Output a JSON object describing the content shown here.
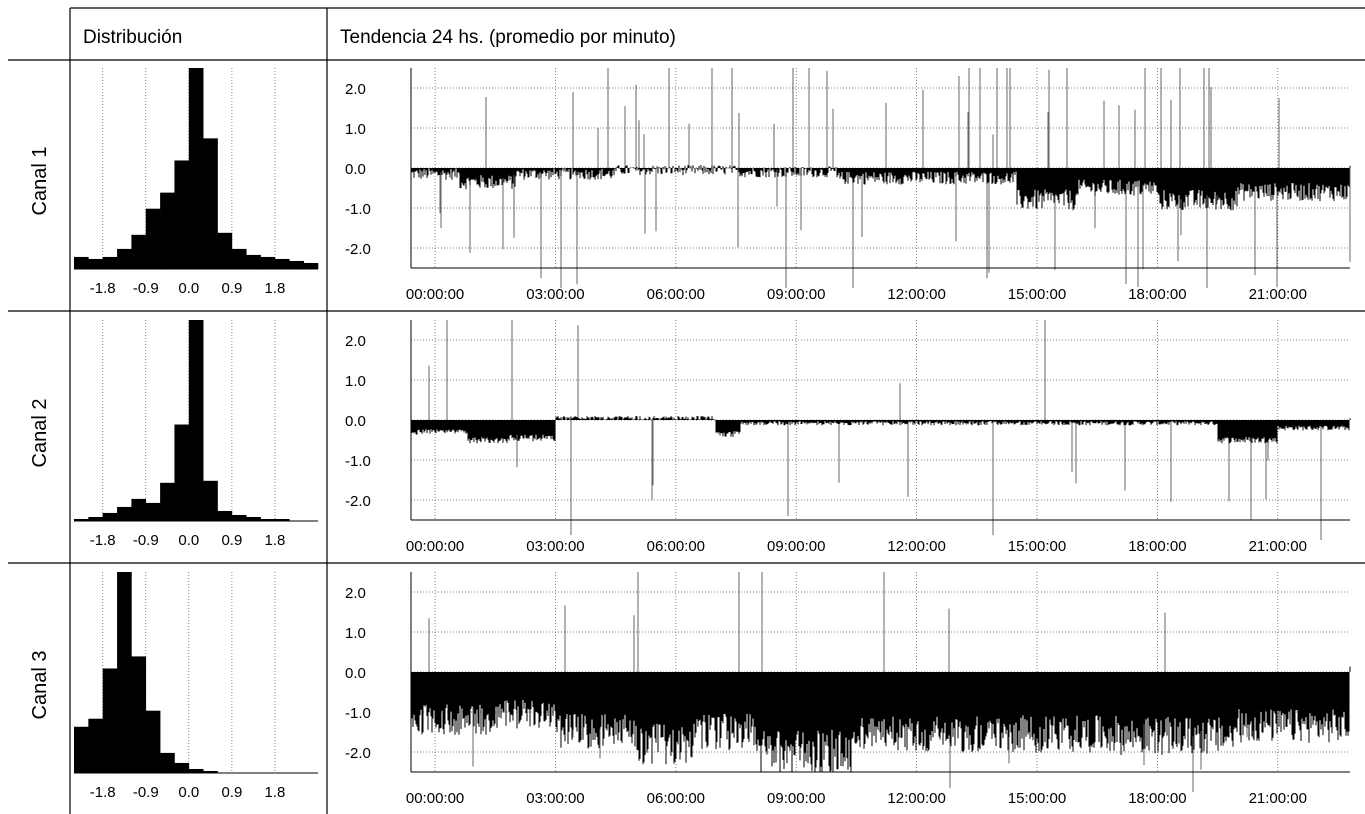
{
  "header": {
    "col1": "Distribución",
    "col2": "Tendencia 24 hs. (promedio por minuto)"
  },
  "chart_data": [
    {
      "type": "bar",
      "panel": "histogram",
      "row_label": "Canal 1",
      "x_tick_labels": [
        "-1.8",
        "-0.9",
        "0.0",
        "0.9",
        "1.8"
      ],
      "x_ticks": [
        -1.8,
        -0.9,
        0.0,
        0.9,
        1.8
      ],
      "bin_width": 0.3,
      "bin_starts": [
        -2.4,
        -2.1,
        -1.8,
        -1.5,
        -1.2,
        -0.9,
        -0.6,
        -0.3,
        0.0,
        0.3,
        0.6,
        0.9,
        1.2,
        1.5,
        1.8,
        2.1,
        2.4
      ],
      "values": [
        6,
        5,
        6,
        10,
        17,
        30,
        38,
        54,
        100,
        65,
        18,
        10,
        7,
        6,
        5,
        4,
        3
      ],
      "grid": true
    },
    {
      "type": "bar",
      "panel": "histogram",
      "row_label": "Canal 2",
      "x_tick_labels": [
        "-1.8",
        "-0.9",
        "0.0",
        "0.9",
        "1.8"
      ],
      "x_ticks": [
        -1.8,
        -0.9,
        0.0,
        0.9,
        1.8
      ],
      "bin_width": 0.3,
      "bin_starts": [
        -2.4,
        -2.1,
        -1.8,
        -1.5,
        -1.2,
        -0.9,
        -0.6,
        -0.3,
        0.0,
        0.3,
        0.6,
        0.9,
        1.2,
        1.5,
        1.8,
        2.1,
        2.4
      ],
      "values": [
        1,
        2,
        4,
        7,
        11,
        9,
        19,
        48,
        100,
        20,
        5,
        3,
        2,
        1,
        1,
        0,
        0
      ],
      "grid": true
    },
    {
      "type": "bar",
      "panel": "histogram",
      "row_label": "Canal 3",
      "x_tick_labels": [
        "-1.8",
        "-0.9",
        "0.0",
        "0.9",
        "1.8"
      ],
      "x_ticks": [
        -1.8,
        -0.9,
        0.0,
        0.9,
        1.8
      ],
      "bin_width": 0.3,
      "bin_starts": [
        -2.4,
        -2.1,
        -1.8,
        -1.5,
        -1.2,
        -0.9,
        -0.6,
        -0.3,
        0.0,
        0.3,
        0.6,
        0.9,
        1.2,
        1.5,
        1.8,
        2.1,
        2.4
      ],
      "values": [
        23,
        27,
        52,
        100,
        58,
        31,
        10,
        5,
        2,
        1,
        0,
        0,
        0,
        0,
        0,
        0,
        0
      ],
      "grid": true
    },
    {
      "type": "area",
      "panel": "trend",
      "row_label": "Canal 1",
      "ylim": [
        -2.5,
        2.5
      ],
      "y_ticks": [
        2.0,
        1.0,
        0.0,
        -1.0,
        -2.0
      ],
      "y_tick_labels": [
        "2.0",
        "1.0",
        "0.0",
        "-1.0",
        "-2.0"
      ],
      "x_tick_labels": [
        "00:00:00",
        "03:00:00",
        "06:00:00",
        "09:00:00",
        "12:00:00",
        "15:00:00",
        "18:00:00",
        "21:00:00"
      ],
      "x_ticks_hours": [
        0,
        3,
        6,
        9,
        12,
        15,
        18,
        21
      ],
      "xlim_hours": [
        -0.6,
        22.8
      ],
      "grid": true,
      "baseline_hours": [
        [
          -0.6,
          0.6,
          -0.15
        ],
        [
          0.6,
          2.0,
          -0.35
        ],
        [
          2.0,
          4.5,
          -0.15
        ],
        [
          4.5,
          7.5,
          -0.05
        ],
        [
          7.5,
          10.0,
          -0.1
        ],
        [
          10.0,
          14.5,
          -0.25
        ],
        [
          14.5,
          16.0,
          -0.8
        ],
        [
          16.0,
          18.0,
          -0.5
        ],
        [
          18.0,
          20.0,
          -0.8
        ],
        [
          20.0,
          22.8,
          -0.6
        ]
      ],
      "noise": 0.3,
      "spike_rate": 0.06
    },
    {
      "type": "area",
      "panel": "trend",
      "row_label": "Canal 2",
      "ylim": [
        -2.5,
        2.5
      ],
      "y_ticks": [
        2.0,
        1.0,
        0.0,
        -1.0,
        -2.0
      ],
      "y_tick_labels": [
        "2.0",
        "1.0",
        "0.0",
        "-1.0",
        "-2.0"
      ],
      "x_tick_labels": [
        "00:00:00",
        "03:00:00",
        "06:00:00",
        "09:00:00",
        "12:00:00",
        "15:00:00",
        "18:00:00",
        "21:00:00"
      ],
      "x_ticks_hours": [
        0,
        3,
        6,
        9,
        12,
        15,
        18,
        21
      ],
      "xlim_hours": [
        -0.6,
        22.8
      ],
      "grid": true,
      "baseline_hours": [
        [
          -0.6,
          0.8,
          -0.3
        ],
        [
          0.8,
          1.8,
          -0.5
        ],
        [
          1.8,
          3.0,
          -0.45
        ],
        [
          3.0,
          7.0,
          0.05
        ],
        [
          7.0,
          7.6,
          -0.35
        ],
        [
          7.6,
          19.5,
          -0.08
        ],
        [
          19.5,
          21.0,
          -0.5
        ],
        [
          21.0,
          22.8,
          -0.2
        ]
      ],
      "noise": 0.12,
      "spike_rate": 0.02
    },
    {
      "type": "area",
      "panel": "trend",
      "row_label": "Canal 3",
      "ylim": [
        -2.5,
        2.5
      ],
      "y_ticks": [
        2.0,
        1.0,
        0.0,
        -1.0,
        -2.0
      ],
      "y_tick_labels": [
        "2.0",
        "1.0",
        "0.0",
        "-1.0",
        "-2.0"
      ],
      "x_tick_labels": [
        "00:00:00",
        "03:00:00",
        "06:00:00",
        "09:00:00",
        "12:00:00",
        "15:00:00",
        "18:00:00",
        "21:00:00"
      ],
      "x_ticks_hours": [
        0,
        3,
        6,
        9,
        12,
        15,
        18,
        21
      ],
      "xlim_hours": [
        -0.6,
        22.8
      ],
      "grid": true,
      "baseline_hours": [
        [
          -0.6,
          1.5,
          -1.2
        ],
        [
          1.5,
          3.0,
          -1.05
        ],
        [
          3.0,
          5.0,
          -1.5
        ],
        [
          5.0,
          6.5,
          -1.8
        ],
        [
          6.5,
          8.0,
          -1.5
        ],
        [
          8.0,
          10.5,
          -2.0
        ],
        [
          10.5,
          14.0,
          -1.55
        ],
        [
          14.0,
          17.0,
          -1.55
        ],
        [
          17.0,
          20.0,
          -1.6
        ],
        [
          20.0,
          22.8,
          -1.35
        ]
      ],
      "noise": 0.35,
      "spike_rate": 0.025
    }
  ]
}
